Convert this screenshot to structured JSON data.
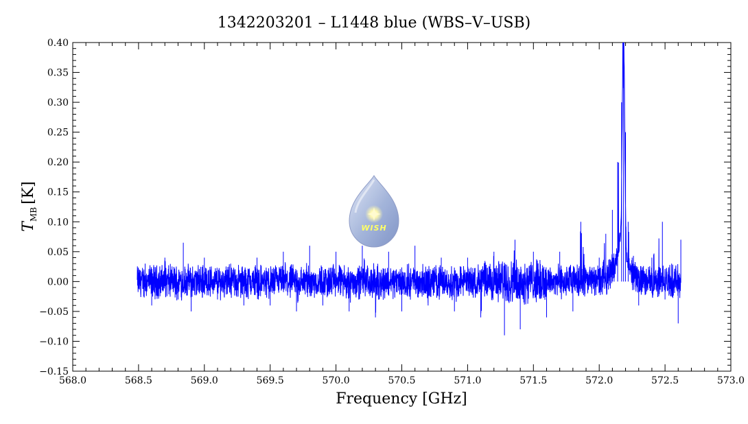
{
  "chart_data": {
    "type": "line",
    "title": "1342203201 – L1448 blue (WBS–V–USB)",
    "xlabel": "Frequency [GHz]",
    "ylabel_main": "T",
    "ylabel_sub": "MB",
    "ylabel_unit": "[K]",
    "xlim": [
      568.0,
      573.0
    ],
    "ylim": [
      -0.15,
      0.4
    ],
    "x_ticks": [
      "568.0",
      "568.5",
      "569.0",
      "569.5",
      "570.0",
      "570.5",
      "571.0",
      "571.5",
      "572.0",
      "572.5",
      "573.0"
    ],
    "y_ticks": [
      "−0.15",
      "−0.10",
      "−0.05",
      "0.00",
      "0.05",
      "0.10",
      "0.15",
      "0.20",
      "0.25",
      "0.30",
      "0.35",
      "0.40"
    ],
    "grid": false,
    "series": [
      {
        "color": "#0000ff",
        "x_range": [
          568.49,
          572.62
        ],
        "points": [
          [
            568.49,
            0.0
          ],
          [
            568.55,
            0.03
          ],
          [
            568.6,
            -0.04
          ],
          [
            568.7,
            0.04
          ],
          [
            568.8,
            -0.03
          ],
          [
            568.84,
            0.065
          ],
          [
            568.9,
            -0.05
          ],
          [
            569.0,
            0.04
          ],
          [
            569.1,
            -0.03
          ],
          [
            569.2,
            0.03
          ],
          [
            569.3,
            -0.04
          ],
          [
            569.4,
            0.04
          ],
          [
            569.5,
            -0.04
          ],
          [
            569.6,
            0.05
          ],
          [
            569.7,
            -0.05
          ],
          [
            569.8,
            0.06
          ],
          [
            569.9,
            -0.04
          ],
          [
            570.0,
            0.05
          ],
          [
            570.1,
            -0.05
          ],
          [
            570.2,
            0.06
          ],
          [
            570.3,
            -0.06
          ],
          [
            570.4,
            0.05
          ],
          [
            570.5,
            -0.05
          ],
          [
            570.6,
            0.06
          ],
          [
            570.7,
            -0.04
          ],
          [
            570.8,
            0.04
          ],
          [
            570.9,
            -0.05
          ],
          [
            571.0,
            0.04
          ],
          [
            571.1,
            -0.06
          ],
          [
            571.2,
            0.05
          ],
          [
            571.28,
            -0.09
          ],
          [
            571.36,
            0.07
          ],
          [
            571.4,
            -0.08
          ],
          [
            571.5,
            0.05
          ],
          [
            571.6,
            -0.06
          ],
          [
            571.7,
            0.05
          ],
          [
            571.8,
            -0.05
          ],
          [
            571.86,
            0.1
          ],
          [
            571.9,
            0.02
          ],
          [
            572.0,
            0.04
          ],
          [
            572.05,
            0.08
          ],
          [
            572.1,
            0.12
          ],
          [
            572.14,
            0.2
          ],
          [
            572.17,
            0.3
          ],
          [
            572.185,
            0.365
          ],
          [
            572.2,
            0.25
          ],
          [
            572.22,
            0.1
          ],
          [
            572.25,
            0.04
          ],
          [
            572.3,
            -0.04
          ],
          [
            572.4,
            0.04
          ],
          [
            572.48,
            0.1
          ],
          [
            572.5,
            -0.03
          ],
          [
            572.55,
            0.03
          ],
          [
            572.6,
            -0.07
          ],
          [
            572.62,
            0.07
          ]
        ]
      }
    ],
    "annotations": [
      {
        "text": "WISH",
        "kind": "logo"
      }
    ]
  }
}
